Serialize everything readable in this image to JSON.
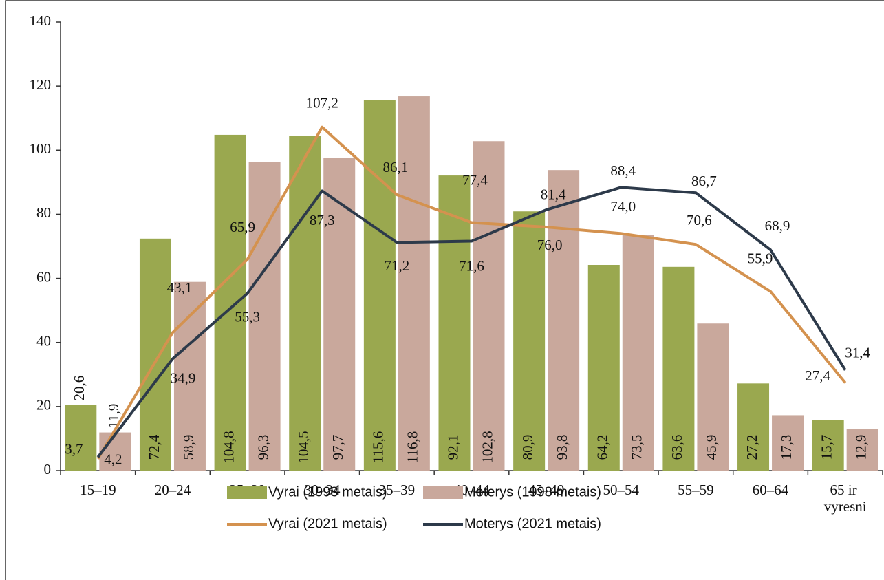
{
  "chart_data": {
    "type": "bar_line",
    "categories": [
      "15–19",
      "20–24",
      "25–29",
      "30–34",
      "35–39",
      "40–44",
      "45–49",
      "50–54",
      "55–59",
      "60–64",
      "65 ir vyresni"
    ],
    "ylim": [
      0,
      140
    ],
    "yticks": [
      0,
      20,
      40,
      60,
      80,
      100,
      120,
      140
    ],
    "series": [
      {
        "name": "Vyrai (1998 metais)",
        "kind": "bar",
        "color": "#9aa84f",
        "values": [
          20.6,
          72.4,
          104.8,
          104.5,
          115.6,
          92.1,
          80.9,
          64.2,
          63.6,
          27.2,
          15.7
        ],
        "value_labels": [
          "20,6",
          "72,4",
          "104,8",
          "104,5",
          "115,6",
          "92,1",
          "80,9",
          "64,2",
          "63,6",
          "27,2",
          "15,7"
        ]
      },
      {
        "name": "Moterys  (1998 metais)",
        "kind": "bar",
        "color": "#c9a89c",
        "values": [
          11.9,
          58.9,
          96.3,
          97.7,
          116.8,
          102.8,
          93.8,
          73.5,
          45.9,
          17.3,
          12.9
        ],
        "value_labels": [
          "11,9",
          "58,9",
          "96,3",
          "97,7",
          "116,8",
          "102,8",
          "93,8",
          "73,5",
          "45,9",
          "17,3",
          "12,9"
        ]
      },
      {
        "name": "Vyrai (2021 metais)",
        "kind": "line",
        "color": "#d4924f",
        "values": [
          3.7,
          43.1,
          65.9,
          107.2,
          86.1,
          77.4,
          76.0,
          74.0,
          70.6,
          55.9,
          27.4
        ],
        "value_labels": [
          "3,7",
          "43,1",
          "65,9",
          "107,2",
          "86,1",
          "77,4",
          "76,0",
          "74,0",
          "70,6",
          "55,9",
          "27,4"
        ]
      },
      {
        "name": "Moterys  (2021 metais)",
        "kind": "line",
        "color": "#2d3a4a",
        "values": [
          4.2,
          34.9,
          55.3,
          87.3,
          71.2,
          71.6,
          81.4,
          88.4,
          86.7,
          68.9,
          31.4
        ],
        "value_labels": [
          "4,2",
          "34,9",
          "55,3",
          "87,3",
          "71,2",
          "71,6",
          "81,4",
          "88,4",
          "86,7",
          "68,9",
          "31,4"
        ]
      }
    ]
  }
}
